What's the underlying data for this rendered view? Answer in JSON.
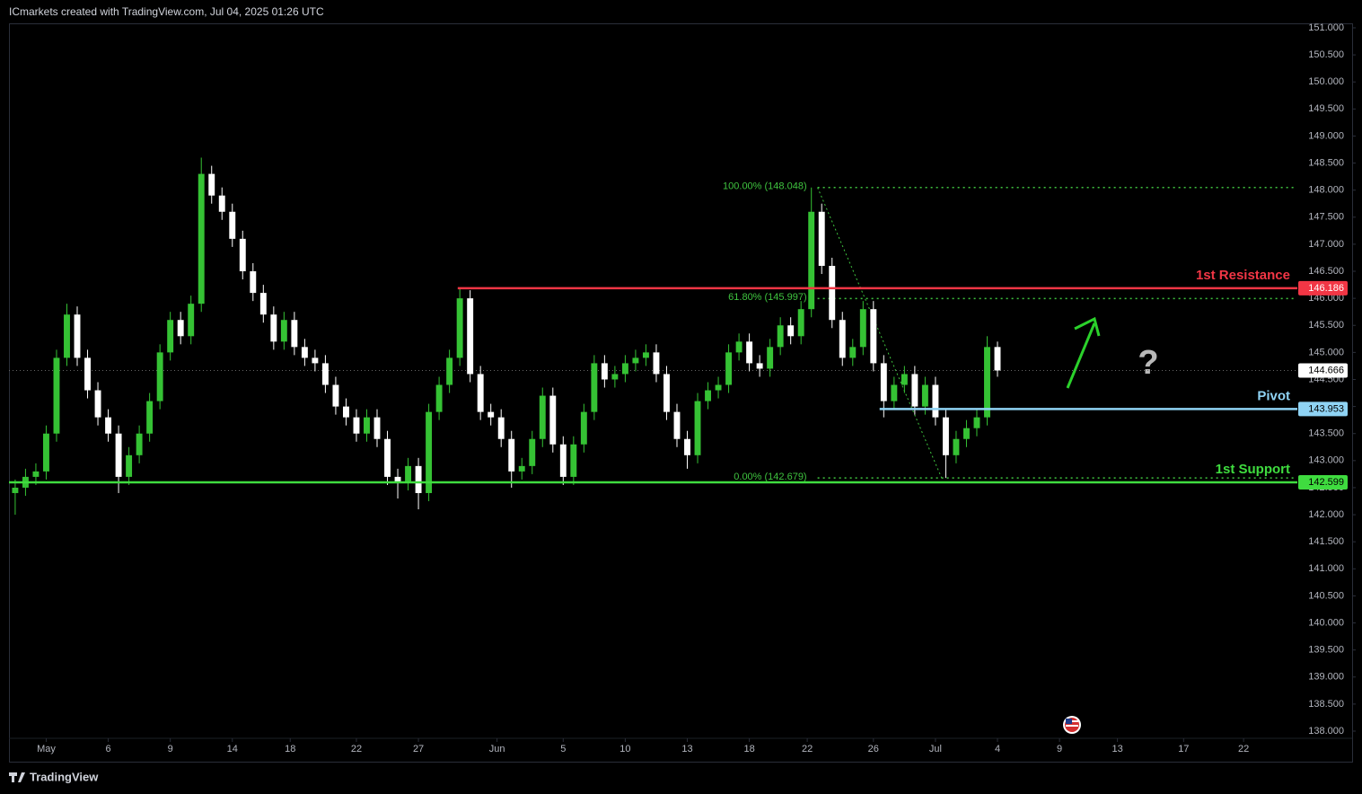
{
  "header": "ICmarkets created with TradingView.com, Jul 04, 2025 01:26 UTC",
  "footer": "TradingView",
  "chart_data": {
    "type": "candlestick",
    "x": [
      -1.5,
      -1,
      -0.5,
      0,
      0.5,
      1,
      1.5,
      2,
      2.5,
      3,
      3.5,
      4,
      4.5,
      5,
      5.5,
      6,
      6.5,
      7,
      7.5,
      8,
      8.5,
      9,
      9.5,
      10,
      10.5,
      11,
      11.5,
      12,
      12.5,
      13,
      13.5,
      14,
      14.5,
      15,
      15.5,
      16,
      16.5,
      17,
      17.5,
      18,
      18.5,
      19,
      19.5,
      20,
      20.5,
      21,
      21.5,
      22,
      22.5,
      23,
      23.5,
      24,
      24.5,
      25,
      25.5,
      26,
      26.5,
      27,
      27.5,
      28,
      28.5,
      29,
      29.5,
      30,
      30.5,
      31,
      31.5,
      32,
      32.5,
      33,
      33.5,
      34,
      34.5,
      35,
      35.5,
      36,
      36.5,
      37,
      37.5,
      38,
      38.5,
      39,
      39.5,
      40,
      40.5,
      41,
      41.5,
      42,
      42.5,
      43,
      43.5,
      44,
      44.5,
      45,
      45.5,
      46
    ],
    "open": [
      142.4,
      142.5,
      142.7,
      142.8,
      143.5,
      144.9,
      145.7,
      144.9,
      144.3,
      143.8,
      143.5,
      142.7,
      143.1,
      143.5,
      144.1,
      145.0,
      145.6,
      145.3,
      145.9,
      148.3,
      147.9,
      147.6,
      147.1,
      146.5,
      146.1,
      145.7,
      145.2,
      145.6,
      145.1,
      144.9,
      144.8,
      144.4,
      144.0,
      143.8,
      143.5,
      143.8,
      143.4,
      142.7,
      142.6,
      142.9,
      142.4,
      143.9,
      144.4,
      144.9,
      146.0,
      144.6,
      143.9,
      143.8,
      143.4,
      142.8,
      142.9,
      143.4,
      144.2,
      143.3,
      142.7,
      143.3,
      143.9,
      144.8,
      144.5,
      144.6,
      144.8,
      144.9,
      145.0,
      144.6,
      143.9,
      143.4,
      143.1,
      144.1,
      144.3,
      144.4,
      145.0,
      145.2,
      144.8,
      144.7,
      145.1,
      145.5,
      145.3,
      145.8,
      147.6,
      146.6,
      145.6,
      144.9,
      145.1,
      145.8,
      144.8,
      144.1,
      144.4,
      144.6,
      144.0,
      144.4,
      143.8,
      143.1,
      143.4,
      143.6,
      143.8,
      145.1
    ],
    "high": [
      142.65,
      142.85,
      142.95,
      143.65,
      145.05,
      145.9,
      145.85,
      145.05,
      144.45,
      143.95,
      143.65,
      143.25,
      143.65,
      144.25,
      145.15,
      145.75,
      145.75,
      146.05,
      148.6,
      148.45,
      148.05,
      147.75,
      147.25,
      146.65,
      146.25,
      145.85,
      145.75,
      145.75,
      145.25,
      145.05,
      144.95,
      144.55,
      144.15,
      143.95,
      143.95,
      143.95,
      143.55,
      142.85,
      143.05,
      143.05,
      144.05,
      144.55,
      145.05,
      146.2,
      146.15,
      144.75,
      144.05,
      143.95,
      143.55,
      143.05,
      143.55,
      144.35,
      144.35,
      143.45,
      143.45,
      144.05,
      144.95,
      144.95,
      144.75,
      144.95,
      145.05,
      145.15,
      145.15,
      144.75,
      144.05,
      143.55,
      144.25,
      144.45,
      144.55,
      145.15,
      145.35,
      145.35,
      144.95,
      145.25,
      145.65,
      145.65,
      145.95,
      148.048,
      147.75,
      146.75,
      145.75,
      145.25,
      145.95,
      145.95,
      144.95,
      144.55,
      144.75,
      144.75,
      144.55,
      144.55,
      143.95,
      143.55,
      143.75,
      143.95,
      145.3,
      145.2
    ],
    "low": [
      142.0,
      142.35,
      142.55,
      142.65,
      143.35,
      144.75,
      144.75,
      144.15,
      143.65,
      143.35,
      142.4,
      142.55,
      142.95,
      143.35,
      143.95,
      144.85,
      145.15,
      145.15,
      145.75,
      147.75,
      147.45,
      146.95,
      146.35,
      145.95,
      145.55,
      145.05,
      145.05,
      144.95,
      144.75,
      144.65,
      144.25,
      143.85,
      143.65,
      143.35,
      143.35,
      143.25,
      142.55,
      142.3,
      142.45,
      142.1,
      142.25,
      143.75,
      144.25,
      144.75,
      144.45,
      143.75,
      143.65,
      143.25,
      142.5,
      142.65,
      142.75,
      143.25,
      143.15,
      142.55,
      142.55,
      143.15,
      143.75,
      144.35,
      144.35,
      144.45,
      144.65,
      144.75,
      144.45,
      143.75,
      143.25,
      142.85,
      142.95,
      143.95,
      144.15,
      144.25,
      144.85,
      144.65,
      144.55,
      144.55,
      144.95,
      145.15,
      145.15,
      145.65,
      146.45,
      145.45,
      144.75,
      144.75,
      144.95,
      144.65,
      143.8,
      143.95,
      144.25,
      143.85,
      143.85,
      143.65,
      142.679,
      142.95,
      143.25,
      143.45,
      143.65,
      144.55
    ],
    "close": [
      142.5,
      142.7,
      142.8,
      143.5,
      144.9,
      145.7,
      144.9,
      144.3,
      143.8,
      143.5,
      142.7,
      143.1,
      143.5,
      144.1,
      145.0,
      145.6,
      145.3,
      145.9,
      148.3,
      147.9,
      147.6,
      147.1,
      146.5,
      146.1,
      145.7,
      145.2,
      145.6,
      145.1,
      144.9,
      144.8,
      144.4,
      144.0,
      143.8,
      143.5,
      143.8,
      143.4,
      142.7,
      142.6,
      142.9,
      142.4,
      143.9,
      144.4,
      144.9,
      146.0,
      144.6,
      143.9,
      143.8,
      143.4,
      142.8,
      142.9,
      143.4,
      144.2,
      143.3,
      142.7,
      143.3,
      143.9,
      144.8,
      144.5,
      144.6,
      144.8,
      144.9,
      145.0,
      144.6,
      143.9,
      143.4,
      143.1,
      144.1,
      144.3,
      144.4,
      145.0,
      145.2,
      144.8,
      144.7,
      145.1,
      145.5,
      145.3,
      145.8,
      147.6,
      146.6,
      145.6,
      144.9,
      145.1,
      145.8,
      144.8,
      144.1,
      144.4,
      144.6,
      144.0,
      144.4,
      143.8,
      143.1,
      143.4,
      143.6,
      143.8,
      145.1,
      144.666
    ],
    "up_color": "#35c234",
    "down_color": "#ffffff",
    "xlim": [
      -1.8,
      60.5
    ],
    "xticks": [
      {
        "value": 0,
        "label": "May"
      },
      {
        "value": 3,
        "label": "6"
      },
      {
        "value": 6,
        "label": "9"
      },
      {
        "value": 9,
        "label": "14"
      },
      {
        "value": 11.8,
        "label": "18"
      },
      {
        "value": 15,
        "label": "22"
      },
      {
        "value": 18,
        "label": "27"
      },
      {
        "value": 21.8,
        "label": "Jun"
      },
      {
        "value": 25,
        "label": "5"
      },
      {
        "value": 28,
        "label": "10"
      },
      {
        "value": 31,
        "label": "13"
      },
      {
        "value": 34,
        "label": "18"
      },
      {
        "value": 36.8,
        "label": "22"
      },
      {
        "value": 40,
        "label": "26"
      },
      {
        "value": 43,
        "label": "Jul"
      },
      {
        "value": 46,
        "label": "4"
      },
      {
        "value": 49,
        "label": "9"
      },
      {
        "value": 51.8,
        "label": "13"
      },
      {
        "value": 55,
        "label": "17"
      },
      {
        "value": 57.9,
        "label": "22"
      }
    ],
    "ylim": [
      137.867,
      151.066
    ],
    "yticks": [
      {
        "value": 138,
        "label": "138.000"
      },
      {
        "value": 138.5,
        "label": "138.500"
      },
      {
        "value": 139,
        "label": "139.000"
      },
      {
        "value": 139.5,
        "label": "139.500"
      },
      {
        "value": 140,
        "label": "140.000"
      },
      {
        "value": 140.5,
        "label": "140.500"
      },
      {
        "value": 141,
        "label": "141.000"
      },
      {
        "value": 141.5,
        "label": "141.500"
      },
      {
        "value": 142,
        "label": "142.000"
      },
      {
        "value": 142.5,
        "label": "142.500"
      },
      {
        "value": 143,
        "label": "143.000"
      },
      {
        "value": 143.5,
        "label": "143.500"
      },
      {
        "value": 144,
        "label": "144.000"
      },
      {
        "value": 144.5,
        "label": "144.500"
      },
      {
        "value": 145,
        "label": "145.000"
      },
      {
        "value": 145.5,
        "label": "145.500"
      },
      {
        "value": 146,
        "label": "146.000"
      },
      {
        "value": 146.5,
        "label": "146.500"
      },
      {
        "value": 147,
        "label": "147.000"
      },
      {
        "value": 147.5,
        "label": "147.500"
      },
      {
        "value": 148,
        "label": "148.000"
      },
      {
        "value": 148.5,
        "label": "148.500"
      },
      {
        "value": 149,
        "label": "149.000"
      },
      {
        "value": 149.5,
        "label": "149.500"
      },
      {
        "value": 150,
        "label": "150.000"
      },
      {
        "value": 150.5,
        "label": "150.500"
      },
      {
        "value": 151,
        "label": "151.000"
      }
    ],
    "levels": [
      {
        "name": "1st Resistance",
        "value": 146.186,
        "color": "#f23645",
        "start": 19.9
      },
      {
        "name": "Pivot",
        "value": 143.953,
        "color": "#8fd3f4",
        "start": 40.3
      },
      {
        "name": "1st Support",
        "value": 142.599,
        "color": "#3fdc3f",
        "start": -1.8
      }
    ],
    "last_price": 144.666,
    "fib": {
      "color": "#3fc43f",
      "start": 37.3,
      "levels": [
        {
          "label": "100.00% (148.048)",
          "value": 148.048
        },
        {
          "label": "61.80% (145.997)",
          "value": 145.997
        },
        {
          "label": "0.00% (142.679)",
          "value": 142.679
        }
      ]
    },
    "trend_line": {
      "x": [
        37.3,
        43.3
      ],
      "y": [
        148.048,
        142.679
      ]
    }
  }
}
